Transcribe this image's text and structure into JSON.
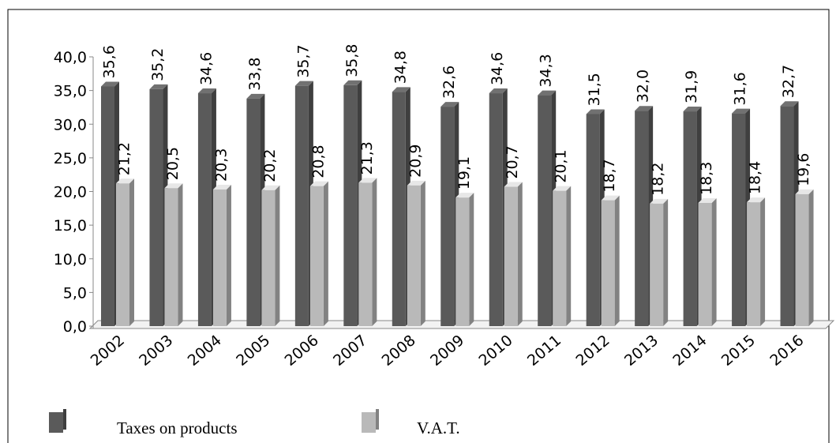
{
  "chart_data": {
    "type": "bar",
    "categories": [
      "2002",
      "2003",
      "2004",
      "2005",
      "2006",
      "2007",
      "2008",
      "2009",
      "2010",
      "2011",
      "2012",
      "2013",
      "2014",
      "2015",
      "2016"
    ],
    "series": [
      {
        "name": "Taxes on products",
        "color": "#5a5a5a",
        "values": [
          35.6,
          35.2,
          34.6,
          33.8,
          35.7,
          35.8,
          34.8,
          32.6,
          34.6,
          34.3,
          31.5,
          32.0,
          31.9,
          31.6,
          32.7
        ],
        "value_labels": [
          "35,6",
          "35,2",
          "34,6",
          "33,8",
          "35,7",
          "35,8",
          "34,8",
          "32,6",
          "34,6",
          "34,3",
          "31,5",
          "32,0",
          "31,9",
          "31,6",
          "32,7"
        ]
      },
      {
        "name": "V.A.T.",
        "color": "#b9b9b9",
        "values": [
          21.2,
          20.5,
          20.3,
          20.2,
          20.8,
          21.3,
          20.9,
          19.1,
          20.7,
          20.1,
          18.7,
          18.2,
          18.3,
          18.4,
          19.6
        ],
        "value_labels": [
          "21,2",
          "20,5",
          "20,3",
          "20,2",
          "20,8",
          "21,3",
          "20,9",
          "19,1",
          "20,7",
          "20,1",
          "18,7",
          "18,2",
          "18,3",
          "18,4",
          "19,6"
        ]
      }
    ],
    "ylim": [
      0,
      40
    ],
    "yticks": [
      {
        "value": 0,
        "label": "0,0"
      },
      {
        "value": 5,
        "label": "5,0"
      },
      {
        "value": 10,
        "label": "10,0"
      },
      {
        "value": 15,
        "label": "15,0"
      },
      {
        "value": 20,
        "label": "20,0"
      },
      {
        "value": 25,
        "label": "25,0"
      },
      {
        "value": 30,
        "label": "30,0"
      },
      {
        "value": 35,
        "label": "35,0"
      },
      {
        "value": 40,
        "label": "40,0"
      }
    ],
    "grid": false
  }
}
